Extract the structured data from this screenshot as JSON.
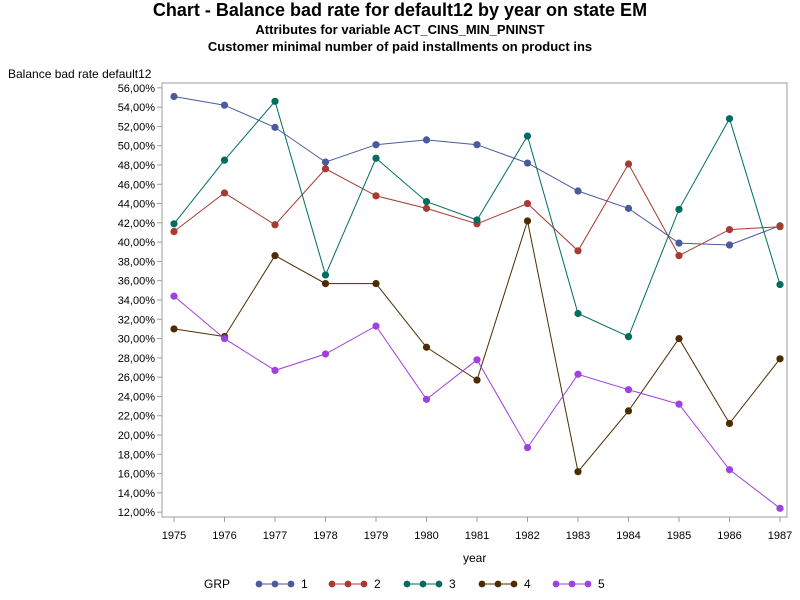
{
  "chart_data": {
    "type": "line",
    "title": "Chart - Balance bad rate for default12 by year on state EM",
    "subtitle1": "Attributes for variable ACT_CINS_MIN_PNINST",
    "subtitle2": "Customer minimal number of paid installments on product ins",
    "xlabel": "year",
    "ylabel": "Balance bad rate default12",
    "x": [
      1975,
      1976,
      1977,
      1978,
      1979,
      1980,
      1981,
      1982,
      1983,
      1984,
      1985,
      1986,
      1987
    ],
    "ylim": [
      11.5,
      56.5
    ],
    "y_ticks": [
      "12,00%",
      "14,00%",
      "16,00%",
      "18,00%",
      "20,00%",
      "22,00%",
      "24,00%",
      "26,00%",
      "28,00%",
      "30,00%",
      "32,00%",
      "34,00%",
      "36,00%",
      "38,00%",
      "40,00%",
      "42,00%",
      "44,00%",
      "46,00%",
      "48,00%",
      "50,00%",
      "52,00%",
      "54,00%",
      "56,00%"
    ],
    "grid": false,
    "legend_title": "GRP",
    "legend_position": "bottom",
    "series": [
      {
        "name": "1",
        "color": "#4a5a9e",
        "values": [
          55.1,
          54.2,
          51.9,
          48.3,
          50.1,
          50.6,
          50.1,
          48.2,
          45.3,
          43.5,
          39.9,
          39.7,
          41.7
        ]
      },
      {
        "name": "2",
        "color": "#a93a32",
        "values": [
          41.1,
          45.1,
          41.8,
          47.6,
          44.8,
          43.5,
          41.9,
          44.0,
          39.1,
          48.1,
          38.6,
          41.3,
          41.6
        ]
      },
      {
        "name": "3",
        "color": "#006d5e",
        "values": [
          41.9,
          48.5,
          54.6,
          36.6,
          48.7,
          44.2,
          42.3,
          51.0,
          32.6,
          30.2,
          43.4,
          52.8,
          35.6
        ]
      },
      {
        "name": "4",
        "color": "#4d2d00",
        "values": [
          31.0,
          30.2,
          38.6,
          35.7,
          35.7,
          29.1,
          25.7,
          42.2,
          16.2,
          22.5,
          30.0,
          21.2,
          27.9
        ]
      },
      {
        "name": "5",
        "color": "#a040e0",
        "values": [
          34.4,
          30.0,
          26.7,
          28.4,
          31.3,
          23.7,
          27.8,
          18.7,
          26.3,
          24.7,
          23.2,
          16.4,
          12.4
        ]
      }
    ]
  }
}
